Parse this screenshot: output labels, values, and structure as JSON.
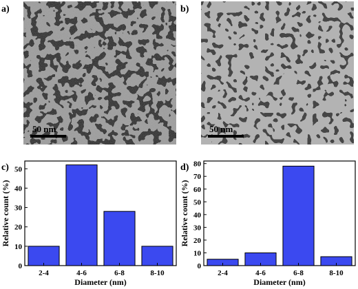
{
  "panels": {
    "a": {
      "label": "a)",
      "scale_bar": "50 nm"
    },
    "b": {
      "label": "b)",
      "scale_bar": "50 nm"
    },
    "c": {
      "label": "c)"
    },
    "d": {
      "label": "d)"
    }
  },
  "chart_data": [
    {
      "type": "bar",
      "panel": "c",
      "categories": [
        "2-4",
        "4-6",
        "6-8",
        "8-10"
      ],
      "values": [
        10,
        52,
        28,
        10
      ],
      "xlabel": "Diameter (nm)",
      "ylabel": "Relative count (%)",
      "ylim": [
        0,
        54
      ],
      "yticks": [
        0,
        10,
        20,
        30,
        40,
        50
      ],
      "bar_color": "#3b49f0",
      "grid": false
    },
    {
      "type": "bar",
      "panel": "d",
      "categories": [
        "2-4",
        "4-6",
        "6-8",
        "8-10"
      ],
      "values": [
        5,
        10,
        78,
        7
      ],
      "xlabel": "Diameter (nm)",
      "ylabel": "Relative count (%)",
      "ylim": [
        0,
        82
      ],
      "yticks": [
        0,
        10,
        20,
        30,
        40,
        50,
        60,
        70,
        80
      ],
      "bar_color": "#3b49f0",
      "grid": false
    }
  ]
}
